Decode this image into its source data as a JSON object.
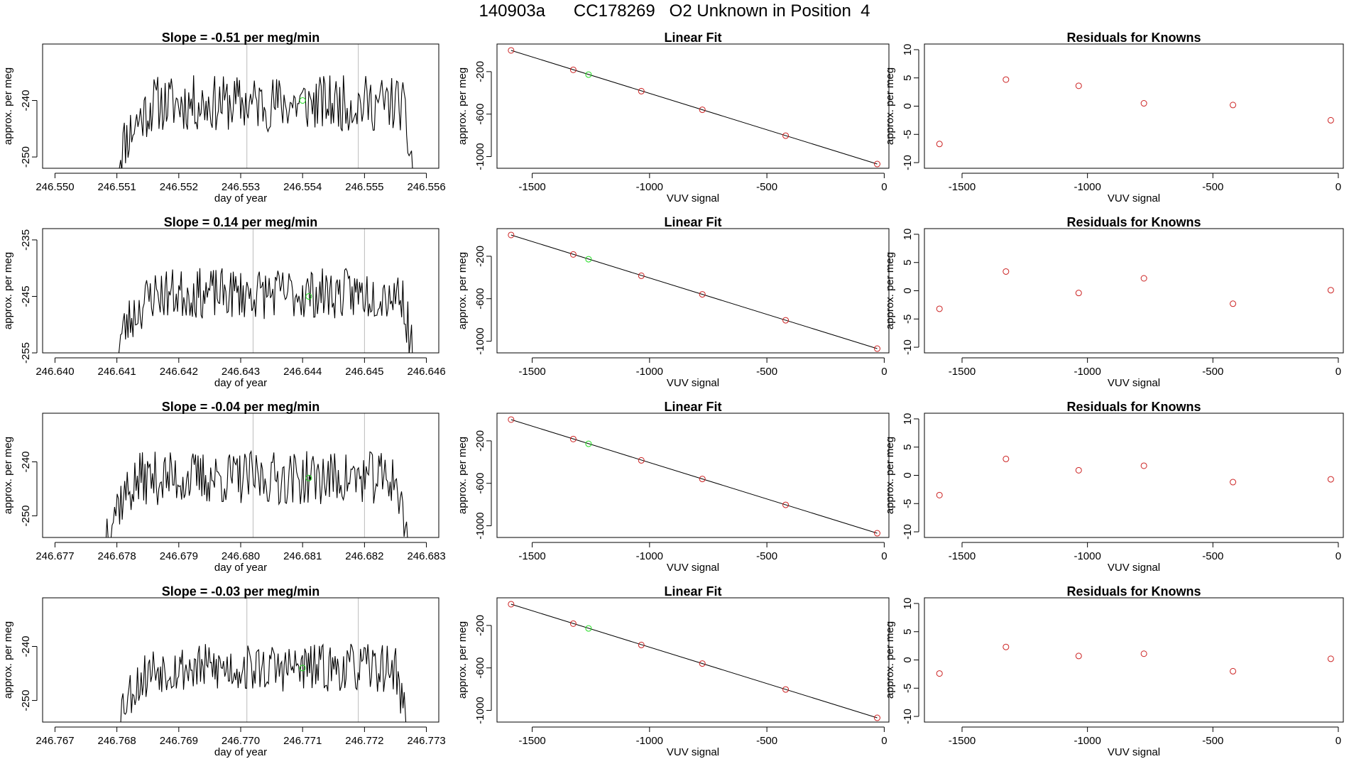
{
  "page": {
    "title": "140903a      CC178269   O2 Unknown in Position  4"
  },
  "colors": {
    "trace": "#000000",
    "known": "#cc2222",
    "unknown": "#22dd22",
    "vline": "#bbbbbb",
    "axis": "#000000"
  },
  "chart_data": [
    {
      "type": "line",
      "panel": "time",
      "row": 0,
      "title": "Slope =  -0.51  per meg/min",
      "xlabel": "day of year",
      "ylabel": "approx. per meg",
      "xlim": [
        246.5498,
        246.5562
      ],
      "ylim": [
        -252,
        -230
      ],
      "xticks": [
        246.55,
        246.551,
        246.552,
        246.553,
        246.554,
        246.555,
        246.556
      ],
      "xtick_labels": [
        "246.550",
        "246.551",
        "246.552",
        "246.553",
        "246.554",
        "246.555",
        "246.556"
      ],
      "yticks": [
        -240,
        -250
      ],
      "ytick_labels": [
        "-240",
        "-250"
      ],
      "vlines": [
        246.5531,
        246.5549
      ],
      "trace": {
        "x_start": 246.551,
        "x_end": 246.5558,
        "y_start": -253,
        "y_end": -253,
        "plateau": -240.5,
        "amp": 5.0,
        "seed": 11
      },
      "unknown_point": {
        "x": 246.554,
        "y": -240
      }
    },
    {
      "type": "scatter",
      "panel": "fit",
      "row": 0,
      "title": "Linear Fit",
      "xlabel": "VUV signal",
      "ylabel": "approx. per meg",
      "xlim": [
        -1650,
        20
      ],
      "ylim": [
        -1110,
        60
      ],
      "xticks": [
        -1500,
        -1000,
        -500,
        0
      ],
      "xtick_labels": [
        "-1500",
        "-1000",
        "-500",
        "0"
      ],
      "yticks": [
        -200,
        -600,
        -1000
      ],
      "ytick_labels": [
        "-200",
        "-600",
        "-1000"
      ],
      "line": [
        [
          -1590,
          0
        ],
        [
          -30,
          -1070
        ]
      ],
      "known_points": [
        [
          -1590,
          0
        ],
        [
          -1325,
          -183
        ],
        [
          -1035,
          -384
        ],
        [
          -775,
          -559
        ],
        [
          -420,
          -803
        ],
        [
          -30,
          -1070
        ]
      ],
      "unknown_point": [
        -1260,
        -228
      ]
    },
    {
      "type": "scatter",
      "panel": "residuals",
      "row": 0,
      "title": "Residuals for Knowns",
      "xlabel": "VUV signal",
      "ylabel": "approx. per meg",
      "xlim": [
        -1650,
        20
      ],
      "ylim": [
        -11,
        11
      ],
      "xticks": [
        -1500,
        -1000,
        -500,
        0
      ],
      "xtick_labels": [
        "-1500",
        "-1000",
        "-500",
        "0"
      ],
      "yticks": [
        10,
        5,
        0,
        -5,
        -10
      ],
      "ytick_labels": [
        "10",
        "5",
        "0",
        "-5",
        "-10"
      ],
      "points": [
        [
          -1590,
          -6.7
        ],
        [
          -1325,
          4.7
        ],
        [
          -1035,
          3.6
        ],
        [
          -775,
          0.5
        ],
        [
          -420,
          0.2
        ],
        [
          -30,
          -2.5
        ]
      ]
    },
    {
      "type": "line",
      "panel": "time",
      "row": 1,
      "title": "Slope =  0.14  per meg/min",
      "xlabel": "day of year",
      "ylabel": "approx. per meg",
      "xlim": [
        246.6398,
        246.6462
      ],
      "ylim": [
        -255,
        -233
      ],
      "xticks": [
        246.64,
        246.641,
        246.642,
        246.643,
        246.644,
        246.645,
        246.646
      ],
      "xtick_labels": [
        "246.640",
        "246.641",
        "246.642",
        "246.643",
        "246.644",
        "246.645",
        "246.646"
      ],
      "yticks": [
        -235,
        -245,
        -255
      ],
      "ytick_labels": [
        "-235",
        "-245",
        "-255"
      ],
      "vlines": [
        246.6432,
        246.645
      ],
      "trace": {
        "x_start": 246.641,
        "x_end": 246.6458,
        "y_start": -256,
        "y_end": -256,
        "plateau": -244.5,
        "amp": 4.5,
        "seed": 23
      },
      "unknown_point": {
        "x": 246.6441,
        "y": -245
      }
    },
    {
      "type": "scatter",
      "panel": "fit",
      "row": 1,
      "title": "Linear Fit",
      "xlabel": "VUV signal",
      "ylabel": "approx. per meg",
      "xlim": [
        -1650,
        20
      ],
      "ylim": [
        -1110,
        60
      ],
      "xticks": [
        -1500,
        -1000,
        -500,
        0
      ],
      "xtick_labels": [
        "-1500",
        "-1000",
        "-500",
        "0"
      ],
      "yticks": [
        -200,
        -600,
        -1000
      ],
      "ytick_labels": [
        "-200",
        "-600",
        "-1000"
      ],
      "line": [
        [
          -1590,
          0
        ],
        [
          -30,
          -1070
        ]
      ],
      "known_points": [
        [
          -1590,
          0
        ],
        [
          -1325,
          -183
        ],
        [
          -1035,
          -384
        ],
        [
          -775,
          -559
        ],
        [
          -420,
          -803
        ],
        [
          -30,
          -1070
        ]
      ],
      "unknown_point": [
        -1260,
        -228
      ]
    },
    {
      "type": "scatter",
      "panel": "residuals",
      "row": 1,
      "title": "Residuals for Knowns",
      "xlabel": "VUV signal",
      "ylabel": "approx. per meg",
      "xlim": [
        -1650,
        20
      ],
      "ylim": [
        -11,
        11
      ],
      "xticks": [
        -1500,
        -1000,
        -500,
        0
      ],
      "xtick_labels": [
        "-1500",
        "-1000",
        "-500",
        "0"
      ],
      "yticks": [
        10,
        5,
        0,
        -5,
        -10
      ],
      "ytick_labels": [
        "10",
        "5",
        "0",
        "-5",
        "-10"
      ],
      "points": [
        [
          -1590,
          -3.2
        ],
        [
          -1325,
          3.4
        ],
        [
          -1035,
          -0.4
        ],
        [
          -775,
          2.2
        ],
        [
          -420,
          -2.3
        ],
        [
          -30,
          0.1
        ]
      ]
    },
    {
      "type": "line",
      "panel": "time",
      "row": 2,
      "title": "Slope =  -0.04  per meg/min",
      "xlabel": "day of year",
      "ylabel": "approx. per meg",
      "xlim": [
        246.6768,
        246.6832
      ],
      "ylim": [
        -254,
        -231
      ],
      "xticks": [
        246.677,
        246.678,
        246.679,
        246.68,
        246.681,
        246.682,
        246.683
      ],
      "xtick_labels": [
        "246.677",
        "246.678",
        "246.679",
        "246.680",
        "246.681",
        "246.682",
        "246.683"
      ],
      "yticks": [
        -240,
        -250
      ],
      "ytick_labels": [
        "-240",
        "-250"
      ],
      "vlines": [
        246.6802,
        246.682
      ],
      "trace": {
        "x_start": 246.6778,
        "x_end": 246.6827,
        "y_start": -255,
        "y_end": -255,
        "plateau": -243.0,
        "amp": 5.0,
        "seed": 37
      },
      "unknown_point": {
        "x": 246.6811,
        "y": -243
      }
    },
    {
      "type": "scatter",
      "panel": "fit",
      "row": 2,
      "title": "Linear Fit",
      "xlabel": "VUV signal",
      "ylabel": "approx. per meg",
      "xlim": [
        -1650,
        20
      ],
      "ylim": [
        -1110,
        60
      ],
      "xticks": [
        -1500,
        -1000,
        -500,
        0
      ],
      "xtick_labels": [
        "-1500",
        "-1000",
        "-500",
        "0"
      ],
      "yticks": [
        -200,
        -600,
        -1000
      ],
      "ytick_labels": [
        "-200",
        "-600",
        "-1000"
      ],
      "line": [
        [
          -1590,
          0
        ],
        [
          -30,
          -1070
        ]
      ],
      "known_points": [
        [
          -1590,
          0
        ],
        [
          -1325,
          -183
        ],
        [
          -1035,
          -384
        ],
        [
          -775,
          -559
        ],
        [
          -420,
          -803
        ],
        [
          -30,
          -1070
        ]
      ],
      "unknown_point": [
        -1260,
        -228
      ]
    },
    {
      "type": "scatter",
      "panel": "residuals",
      "row": 2,
      "title": "Residuals for Knowns",
      "xlabel": "VUV signal",
      "ylabel": "approx. per meg",
      "xlim": [
        -1650,
        20
      ],
      "ylim": [
        -11,
        11
      ],
      "xticks": [
        -1500,
        -1000,
        -500,
        0
      ],
      "xtick_labels": [
        "-1500",
        "-1000",
        "-500",
        "0"
      ],
      "yticks": [
        10,
        5,
        0,
        -5,
        -10
      ],
      "ytick_labels": [
        "10",
        "5",
        "0",
        "-5",
        "-10"
      ],
      "points": [
        [
          -1590,
          -3.5
        ],
        [
          -1325,
          2.9
        ],
        [
          -1035,
          0.9
        ],
        [
          -775,
          1.7
        ],
        [
          -420,
          -1.2
        ],
        [
          -30,
          -0.7
        ]
      ]
    },
    {
      "type": "line",
      "panel": "time",
      "row": 3,
      "title": "Slope =  -0.03  per meg/min",
      "xlabel": "day of year",
      "ylabel": "approx. per meg",
      "xlim": [
        246.7668,
        246.7732
      ],
      "ylim": [
        -254,
        -231
      ],
      "xticks": [
        246.767,
        246.768,
        246.769,
        246.77,
        246.771,
        246.772,
        246.773
      ],
      "xtick_labels": [
        "246.767",
        "246.768",
        "246.769",
        "246.770",
        "246.771",
        "246.772",
        "246.773"
      ],
      "yticks": [
        -240,
        -250
      ],
      "ytick_labels": [
        "-240",
        "-250"
      ],
      "vlines": [
        246.7701,
        246.7719
      ],
      "trace": {
        "x_start": 246.768,
        "x_end": 246.7727,
        "y_start": -255,
        "y_end": -255,
        "plateau": -244.0,
        "amp": 4.5,
        "seed": 53
      },
      "unknown_point": {
        "x": 246.771,
        "y": -244
      }
    },
    {
      "type": "scatter",
      "panel": "fit",
      "row": 3,
      "title": "Linear Fit",
      "xlabel": "VUV signal",
      "ylabel": "approx. per meg",
      "xlim": [
        -1650,
        20
      ],
      "ylim": [
        -1110,
        60
      ],
      "xticks": [
        -1500,
        -1000,
        -500,
        0
      ],
      "xtick_labels": [
        "-1500",
        "-1000",
        "-500",
        "0"
      ],
      "yticks": [
        -200,
        -600,
        -1000
      ],
      "ytick_labels": [
        "-200",
        "-600",
        "-1000"
      ],
      "line": [
        [
          -1590,
          0
        ],
        [
          -30,
          -1070
        ]
      ],
      "known_points": [
        [
          -1590,
          0
        ],
        [
          -1325,
          -183
        ],
        [
          -1035,
          -384
        ],
        [
          -775,
          -559
        ],
        [
          -420,
          -803
        ],
        [
          -30,
          -1070
        ]
      ],
      "unknown_point": [
        -1260,
        -228
      ]
    },
    {
      "type": "scatter",
      "panel": "residuals",
      "row": 3,
      "title": "Residuals for Knowns",
      "xlabel": "VUV signal",
      "ylabel": "approx. per meg",
      "xlim": [
        -1650,
        20
      ],
      "ylim": [
        -11,
        11
      ],
      "xticks": [
        -1500,
        -1000,
        -500,
        0
      ],
      "xtick_labels": [
        "-1500",
        "-1000",
        "-500",
        "0"
      ],
      "yticks": [
        10,
        5,
        0,
        -5,
        -10
      ],
      "ytick_labels": [
        "10",
        "5",
        "0",
        "-5",
        "-10"
      ],
      "points": [
        [
          -1590,
          -2.4
        ],
        [
          -1325,
          2.3
        ],
        [
          -1035,
          0.7
        ],
        [
          -775,
          1.1
        ],
        [
          -420,
          -2.0
        ],
        [
          -30,
          0.2
        ]
      ]
    }
  ]
}
